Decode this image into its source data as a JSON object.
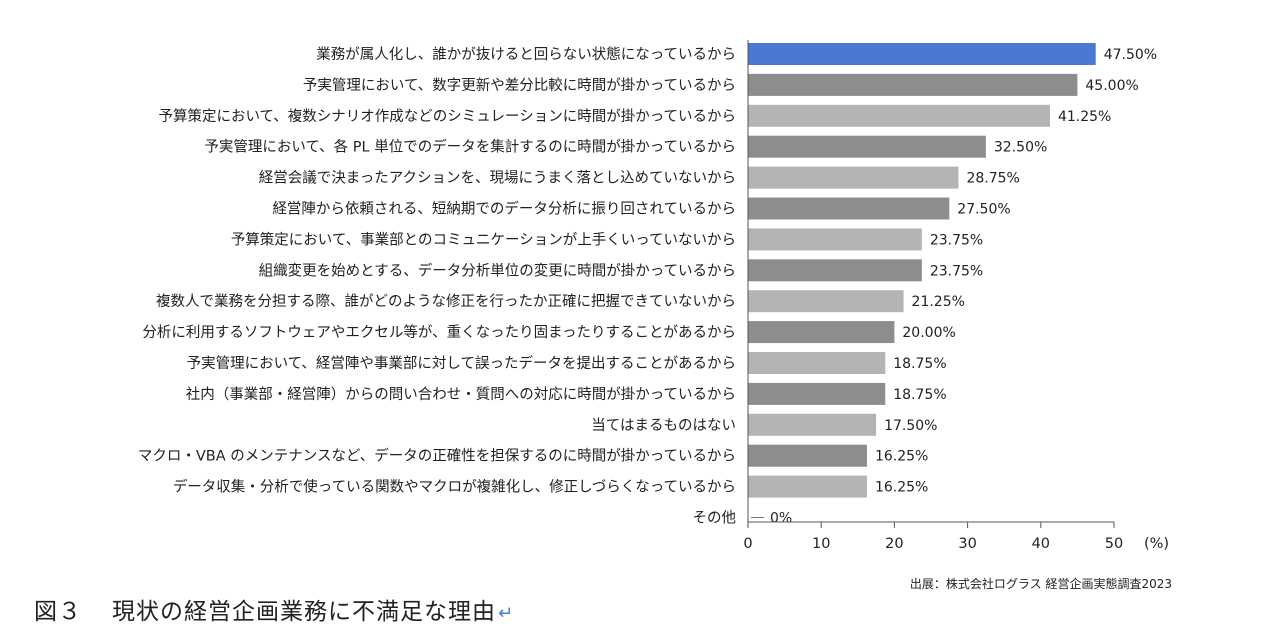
{
  "chart_data": {
    "type": "bar",
    "orientation": "horizontal",
    "categories": [
      "業務が属人化し、誰かが抜けると回らない状態になっているから",
      "予実管理において、数字更新や差分比較に時間が掛かっているから",
      "予算策定において、複数シナリオ作成などのシミュレーションに時間が掛かっているから",
      "予実管理において、各 PL 単位でのデータを集計するのに時間が掛かっているから",
      "経営会議で決まったアクションを、現場にうまく落とし込めていないから",
      "経営陣から依頼される、短納期でのデータ分析に振り回されているから",
      "予算策定において、事業部とのコミュニケーションが上手くいっていないから",
      "組織変更を始めとする、データ分析単位の変更に時間が掛かっているから",
      "複数人で業務を分担する際、誰がどのような修正を行ったか正確に把握できていないから",
      "分析に利用するソフトウェアやエクセル等が、重くなったり固まったりすることがあるから",
      "予実管理において、経営陣や事業部に対して誤ったデータを提出することがあるから",
      "社内（事業部・経営陣）からの問い合わせ・質問への対応に時間が掛かっているから",
      "当てはまるものはない",
      "マクロ・VBA のメンテナンスなど、データの正確性を担保するのに時間が掛かっているから",
      "データ収集・分析で使っている関数やマクロが複雑化し、修正しづらくなっているから",
      "その他"
    ],
    "values": [
      47.5,
      45.0,
      41.25,
      32.5,
      28.75,
      27.5,
      23.75,
      23.75,
      21.25,
      20.0,
      18.75,
      18.75,
      17.5,
      16.25,
      16.25,
      0
    ],
    "value_labels": [
      "47.50%",
      "45.00%",
      "41.25%",
      "32.50%",
      "28.75%",
      "27.50%",
      "23.75%",
      "23.75%",
      "21.25%",
      "20.00%",
      "18.75%",
      "18.75%",
      "17.50%",
      "16.25%",
      "16.25%",
      "0%"
    ],
    "bar_colors": [
      "#4a78d2",
      "#8d8d8d",
      "#b4b4b4",
      "#8d8d8d",
      "#b4b4b4",
      "#8d8d8d",
      "#b4b4b4",
      "#8d8d8d",
      "#b4b4b4",
      "#8d8d8d",
      "#b4b4b4",
      "#8d8d8d",
      "#b4b4b4",
      "#8d8d8d",
      "#b4b4b4",
      "#b4b4b4"
    ],
    "xlim": [
      0,
      50
    ],
    "xticks": [
      0,
      10,
      20,
      30,
      40,
      50
    ],
    "xlabel": "(%)",
    "grid": false,
    "legend": "none"
  },
  "source_note": "出展：株式会社ログラス 経営企画実態調査2023",
  "figure": {
    "number": "図３",
    "title": "現状の経営企画業務に不満足な理由",
    "return_mark": "↵"
  }
}
